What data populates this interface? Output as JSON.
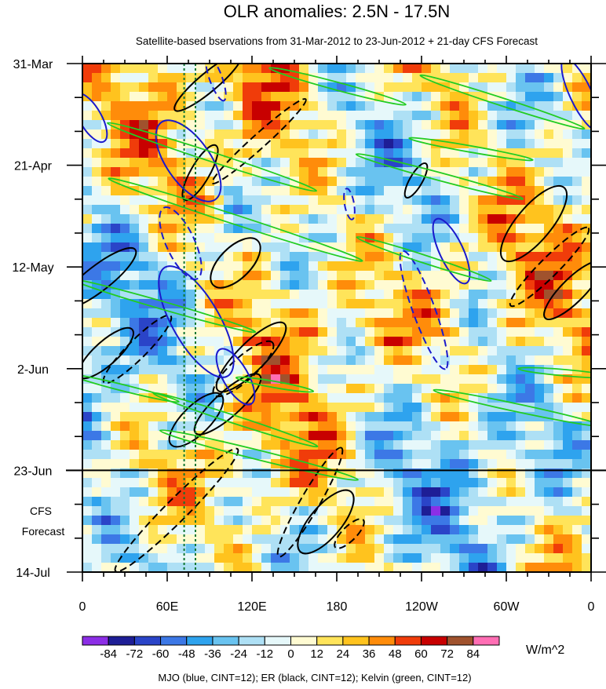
{
  "chart_data": {
    "type": "heatmap",
    "title": "OLR anomalies: 2.5N - 17.5N",
    "subtitle": "Satellite-based bservations from 31-Mar-2012 to 23-Jun-2012 + 21-day CFS Forecast",
    "x_ticks": [
      "0",
      "60E",
      "120E",
      "180",
      "120W",
      "60W",
      "0"
    ],
    "x_tick_lon": [
      0,
      60,
      120,
      180,
      240,
      300,
      360
    ],
    "xlim": [
      0,
      360
    ],
    "y_ticks": [
      "31-Mar",
      "21-Apr",
      "12-May",
      "2-Jun",
      "23-Jun",
      "14-Jul"
    ],
    "y_tick_day": [
      0,
      21,
      42,
      63,
      84,
      105
    ],
    "ylim_days": [
      0,
      105
    ],
    "observation_end_day": 84,
    "forecast_label_lines": [
      "CFS",
      "Forecast"
    ],
    "reference_lines_lon": [
      72,
      80
    ],
    "colorbar": {
      "levels": [
        "-84",
        "-72",
        "-60",
        "-48",
        "-36",
        "-24",
        "-12",
        "0",
        "12",
        "24",
        "36",
        "48",
        "60",
        "72",
        "84"
      ],
      "colors": [
        "#8c2ee6",
        "#1e1e96",
        "#2a44c8",
        "#3c78e6",
        "#2ea3ee",
        "#69c3f0",
        "#aee0f5",
        "#e6f8fa",
        "#fffbd2",
        "#ffe45a",
        "#ffc31e",
        "#ff8c0a",
        "#f03c0a",
        "#c80000",
        "#a0522d",
        "#ff6eb4"
      ],
      "units": "W/m^2"
    },
    "footer": "MJO (blue, CINT=12); ER (black, CINT=12); Kelvin (green, CINT=12)",
    "contour_colors": {
      "mjo": "#1a1acc",
      "er": "#000000",
      "kelvin": "#22cc22"
    }
  }
}
